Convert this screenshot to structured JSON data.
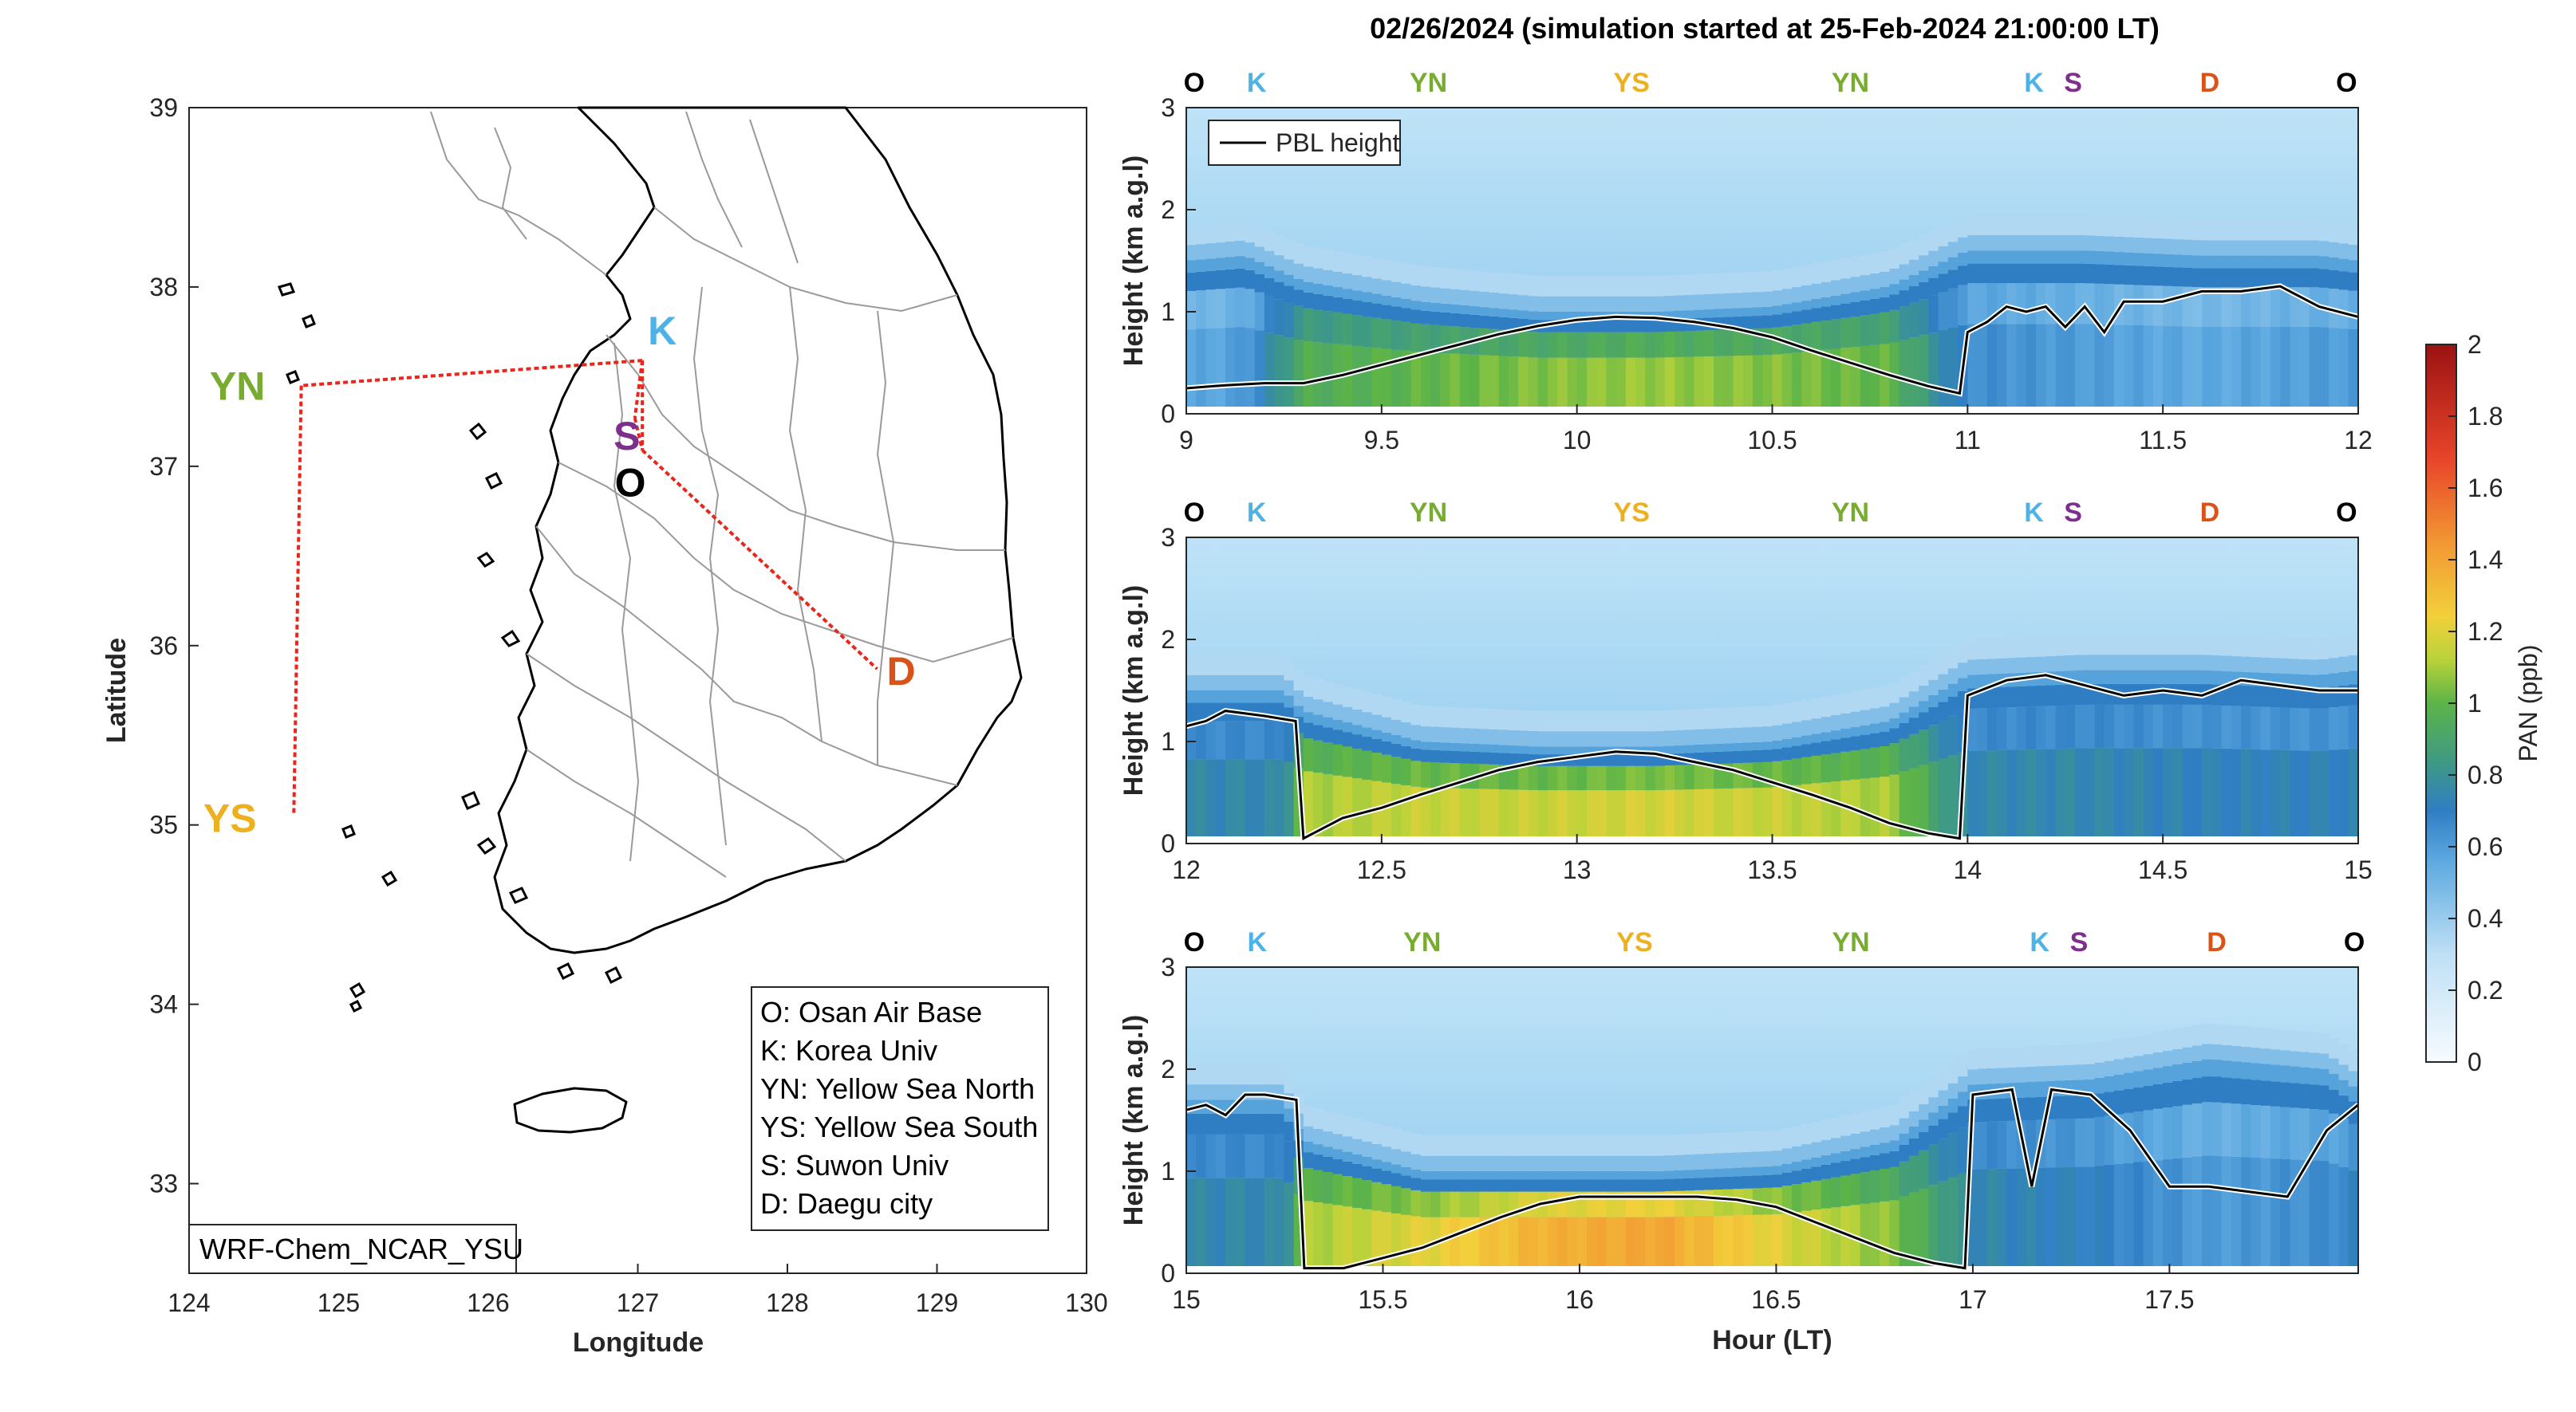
{
  "title": "02/26/2024 (simulation started at 25-Feb-2024 21:00:00 LT)",
  "colors": {
    "O": "#000000",
    "K": "#4db3e6",
    "S": "#7e2f8e",
    "YN": "#77ac30",
    "YS": "#edb120",
    "D": "#d95319",
    "route": "#e8261c",
    "pbl": "#000000"
  },
  "map": {
    "xlabel": "Longitude",
    "ylabel": "Latitude",
    "xticks": [
      "124",
      "125",
      "126",
      "127",
      "128",
      "129",
      "130"
    ],
    "yticks": [
      "39",
      "38",
      "37",
      "36",
      "35",
      "34",
      "33"
    ],
    "xlim": [
      124,
      130
    ],
    "ylim": [
      32.5,
      39
    ],
    "model_label": "WRF-Chem_NCAR_YSU",
    "sites": [
      {
        "code": "K",
        "lon": 127.03,
        "lat": 37.59
      },
      {
        "code": "S",
        "lon": 126.98,
        "lat": 37.27
      },
      {
        "code": "O",
        "lon": 127.03,
        "lat": 37.09
      },
      {
        "code": "YN",
        "lon": 124.75,
        "lat": 37.45
      },
      {
        "code": "YS",
        "lon": 124.7,
        "lat": 35.05
      },
      {
        "code": "D",
        "lon": 128.6,
        "lat": 35.87
      }
    ],
    "legend": [
      "O: Osan Air Base",
      "K: Korea Univ",
      "YN: Yellow Sea North",
      "YS: Yellow Sea South",
      "S: Suwon Univ",
      "D: Daegu city"
    ]
  },
  "chart_data": [
    {
      "type": "heatmap",
      "title": "02/26/2024 (simulation started at 25-Feb-2024 21:00:00 LT)",
      "ylabel": "Height (km a.g.l)",
      "xlim": [
        9,
        12
      ],
      "ylim": [
        0,
        3
      ],
      "xticks": [
        "9",
        "9.5",
        "10",
        "10.5",
        "11",
        "11.5",
        "12"
      ],
      "yticks": [
        "0",
        "1",
        "2",
        "3"
      ],
      "site_labels": [
        "O",
        "K",
        "YN",
        "YS",
        "YN",
        "K",
        "S",
        "D",
        "O"
      ],
      "site_x": [
        9.02,
        9.18,
        9.62,
        10.14,
        10.7,
        11.17,
        11.27,
        11.62,
        11.97
      ],
      "legend": [
        "PBL height"
      ],
      "pbl_height": {
        "x": [
          9.0,
          9.1,
          9.2,
          9.3,
          9.4,
          9.5,
          9.6,
          9.7,
          9.8,
          9.9,
          10.0,
          10.1,
          10.2,
          10.3,
          10.4,
          10.5,
          10.6,
          10.7,
          10.8,
          10.9,
          10.98,
          11.0,
          11.05,
          11.1,
          11.15,
          11.2,
          11.25,
          11.3,
          11.35,
          11.4,
          11.5,
          11.6,
          11.7,
          11.8,
          11.9,
          12.0
        ],
        "y": [
          0.25,
          0.28,
          0.3,
          0.3,
          0.38,
          0.48,
          0.58,
          0.68,
          0.78,
          0.86,
          0.92,
          0.95,
          0.94,
          0.9,
          0.84,
          0.75,
          0.62,
          0.5,
          0.38,
          0.27,
          0.2,
          0.8,
          0.9,
          1.05,
          1.0,
          1.05,
          0.85,
          1.05,
          0.8,
          1.1,
          1.1,
          1.2,
          1.2,
          1.25,
          1.05,
          0.95
        ]
      },
      "pan_profile": {
        "x": [
          9.0,
          9.15,
          9.3,
          9.6,
          9.9,
          10.2,
          10.5,
          10.8,
          11.0,
          11.3,
          11.6,
          11.9,
          12.0
        ],
        "lower_ppb": [
          0.55,
          0.6,
          0.95,
          1.0,
          1.05,
          1.08,
          1.05,
          1.0,
          0.65,
          0.6,
          0.55,
          0.6,
          0.6
        ],
        "top_km": [
          1.5,
          1.55,
          1.3,
          1.1,
          1.0,
          1.0,
          1.05,
          1.25,
          1.6,
          1.6,
          1.55,
          1.55,
          1.5
        ]
      }
    },
    {
      "type": "heatmap",
      "ylabel": "Height (km a.g.l)",
      "xlim": [
        12,
        15
      ],
      "ylim": [
        0,
        3
      ],
      "xticks": [
        "12",
        "12.5",
        "13",
        "13.5",
        "14",
        "14.5",
        "15"
      ],
      "yticks": [
        "0",
        "1",
        "2",
        "3"
      ],
      "site_labels": [
        "O",
        "K",
        "YN",
        "YS",
        "YN",
        "K",
        "S",
        "D",
        "O"
      ],
      "site_x": [
        12.02,
        12.18,
        12.62,
        13.14,
        13.7,
        14.17,
        14.27,
        14.62,
        14.97
      ],
      "pbl_height": {
        "x": [
          12.0,
          12.05,
          12.1,
          12.2,
          12.28,
          12.3,
          12.4,
          12.5,
          12.6,
          12.7,
          12.8,
          12.9,
          13.0,
          13.1,
          13.2,
          13.3,
          13.4,
          13.5,
          13.6,
          13.7,
          13.8,
          13.9,
          13.98,
          14.0,
          14.1,
          14.2,
          14.3,
          14.4,
          14.5,
          14.6,
          14.7,
          14.8,
          14.9,
          15.0
        ],
        "y": [
          1.15,
          1.2,
          1.3,
          1.25,
          1.2,
          0.05,
          0.25,
          0.35,
          0.48,
          0.6,
          0.72,
          0.8,
          0.85,
          0.9,
          0.88,
          0.8,
          0.72,
          0.6,
          0.48,
          0.35,
          0.2,
          0.1,
          0.05,
          1.45,
          1.6,
          1.65,
          1.55,
          1.45,
          1.5,
          1.45,
          1.6,
          1.55,
          1.5,
          1.5
        ]
      },
      "pan_profile": {
        "x": [
          12.0,
          12.25,
          12.3,
          12.6,
          12.9,
          13.2,
          13.5,
          13.8,
          14.0,
          14.3,
          14.6,
          14.9,
          15.0
        ],
        "lower_ppb": [
          0.75,
          0.75,
          1.1,
          1.15,
          1.15,
          1.18,
          1.15,
          1.1,
          0.75,
          0.75,
          0.72,
          0.72,
          0.72
        ],
        "top_km": [
          1.5,
          1.5,
          1.3,
          1.0,
          0.95,
          0.95,
          1.0,
          1.2,
          1.65,
          1.7,
          1.7,
          1.65,
          1.7
        ]
      }
    },
    {
      "type": "heatmap",
      "xlabel": "Hour (LT)",
      "ylabel": "Height (km a.g.l)",
      "xlim": [
        15,
        17.98
      ],
      "ylim": [
        0,
        3
      ],
      "xticks": [
        "15",
        "15.5",
        "16",
        "16.5",
        "17",
        "17.5"
      ],
      "yticks": [
        "0",
        "1",
        "2",
        "3"
      ],
      "site_labels": [
        "O",
        "K",
        "YN",
        "YS",
        "YN",
        "K",
        "S",
        "D",
        "O"
      ],
      "site_x": [
        15.02,
        15.18,
        15.6,
        16.14,
        16.69,
        17.17,
        17.27,
        17.62,
        17.97
      ],
      "pbl_height": {
        "x": [
          15.0,
          15.05,
          15.1,
          15.15,
          15.2,
          15.28,
          15.3,
          15.4,
          15.5,
          15.6,
          15.7,
          15.8,
          15.9,
          16.0,
          16.1,
          16.2,
          16.3,
          16.4,
          16.5,
          16.6,
          16.7,
          16.8,
          16.9,
          16.98,
          17.0,
          17.1,
          17.15,
          17.2,
          17.3,
          17.4,
          17.5,
          17.6,
          17.7,
          17.8,
          17.9,
          17.98
        ],
        "y": [
          1.6,
          1.65,
          1.55,
          1.75,
          1.75,
          1.7,
          0.05,
          0.05,
          0.15,
          0.25,
          0.4,
          0.55,
          0.68,
          0.75,
          0.75,
          0.75,
          0.75,
          0.72,
          0.65,
          0.5,
          0.35,
          0.2,
          0.1,
          0.05,
          1.75,
          1.8,
          0.85,
          1.8,
          1.75,
          1.4,
          0.85,
          0.85,
          0.8,
          0.75,
          1.4,
          1.65
        ]
      },
      "pan_profile": {
        "x": [
          15.0,
          15.25,
          15.3,
          15.6,
          15.9,
          16.2,
          16.5,
          16.8,
          17.0,
          17.3,
          17.6,
          17.9,
          17.98
        ],
        "lower_ppb": [
          0.75,
          0.75,
          1.1,
          1.2,
          1.35,
          1.4,
          1.2,
          1.05,
          0.75,
          0.7,
          0.6,
          0.65,
          0.7
        ],
        "top_km": [
          1.7,
          1.7,
          1.3,
          1.0,
          1.0,
          1.0,
          1.05,
          1.3,
          1.85,
          1.9,
          2.1,
          2.0,
          1.8
        ]
      }
    }
  ],
  "colorbar": {
    "label": "PAN (ppb)",
    "ticks": [
      "0",
      "0.2",
      "0.4",
      "0.6",
      "0.8",
      "1",
      "1.2",
      "1.4",
      "1.6",
      "1.8",
      "2"
    ],
    "range": [
      0,
      2
    ]
  }
}
